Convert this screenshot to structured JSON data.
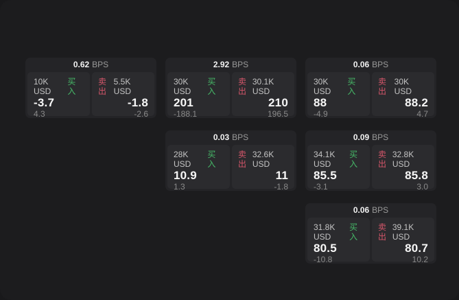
{
  "colors": {
    "buy_accent": "#46b968",
    "sell_accent": "#d5566a",
    "surface_bg": "#1c1c1e",
    "card_bg": "#242427",
    "tile_bg": "#2b2b2e"
  },
  "cards": [
    {
      "bps_value": "0.62",
      "bps_unit": "BPS",
      "buy": {
        "size": "10K USD",
        "action": "买入",
        "price": "-3.7",
        "change": "4.3"
      },
      "sell": {
        "size": "5.5K USD",
        "action": "卖出",
        "price": "-1.8",
        "change": "-2.6"
      }
    },
    {
      "bps_value": "2.92",
      "bps_unit": "BPS",
      "buy": {
        "size": "30K USD",
        "action": "买入",
        "price": "201",
        "change": "-188.1"
      },
      "sell": {
        "size": "30.1K USD",
        "action": "卖出",
        "price": "210",
        "change": "196.5"
      }
    },
    {
      "bps_value": "0.06",
      "bps_unit": "BPS",
      "buy": {
        "size": "30K USD",
        "action": "买入",
        "price": "88",
        "change": "-4.9"
      },
      "sell": {
        "size": "30K USD",
        "action": "卖出",
        "price": "88.2",
        "change": "4.7"
      }
    },
    {
      "bps_value": "0.03",
      "bps_unit": "BPS",
      "buy": {
        "size": "28K USD",
        "action": "买入",
        "price": "10.9",
        "change": "1.3"
      },
      "sell": {
        "size": "32.6K USD",
        "action": "卖出",
        "price": "11",
        "change": "-1.8"
      }
    },
    {
      "bps_value": "0.09",
      "bps_unit": "BPS",
      "buy": {
        "size": "34.1K USD",
        "action": "买入",
        "price": "85.5",
        "change": "-3.1"
      },
      "sell": {
        "size": "32.8K USD",
        "action": "卖出",
        "price": "85.8",
        "change": "3.0"
      }
    },
    {
      "bps_value": "0.06",
      "bps_unit": "BPS",
      "buy": {
        "size": "31.8K USD",
        "action": "买入",
        "price": "80.5",
        "change": "-10.8"
      },
      "sell": {
        "size": "39.1K USD",
        "action": "卖出",
        "price": "80.7",
        "change": "10.2"
      }
    }
  ]
}
